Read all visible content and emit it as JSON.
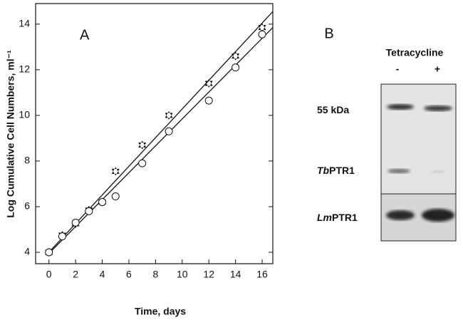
{
  "chart_data": {
    "type": "scatter",
    "panel_label": "A",
    "xlabel": "Time, days",
    "ylabel": "Log Cumulative Cell Numbers, ml⁻¹",
    "xlim": [
      -1,
      16.8
    ],
    "ylim": [
      3.5,
      14.9
    ],
    "xticks": [
      0,
      2,
      4,
      6,
      8,
      10,
      12,
      14,
      16
    ],
    "yticks": [
      4,
      6,
      8,
      10,
      12,
      14
    ],
    "x": [
      0,
      1,
      2,
      3,
      4,
      5,
      7,
      9,
      12,
      14,
      16
    ],
    "series": [
      {
        "marker": "star",
        "color": "#111111",
        "values": [
          4.0,
          4.75,
          5.25,
          5.85,
          6.2,
          7.55,
          8.7,
          10.0,
          11.4,
          12.6,
          13.85
        ],
        "fit": {
          "x": [
            0,
            16.8
          ],
          "values": [
            4.0,
            14.55
          ]
        }
      },
      {
        "marker": "circle",
        "color": "#111111",
        "values": [
          4.0,
          4.7,
          5.3,
          5.8,
          6.2,
          6.45,
          7.9,
          9.3,
          10.65,
          12.1,
          13.55
        ],
        "fit": {
          "x": [
            0,
            16.8
          ],
          "values": [
            3.95,
            13.85
          ]
        }
      }
    ]
  },
  "blot": {
    "panel_label": "B",
    "treatment": "Tetracycline",
    "lanes": [
      "-",
      "+"
    ],
    "rows": [
      {
        "italic": "",
        "text": "55 kDa"
      },
      {
        "italic": "Tb",
        "text": "PTR1"
      },
      {
        "italic": "Lm",
        "text": "PTR1"
      }
    ]
  }
}
